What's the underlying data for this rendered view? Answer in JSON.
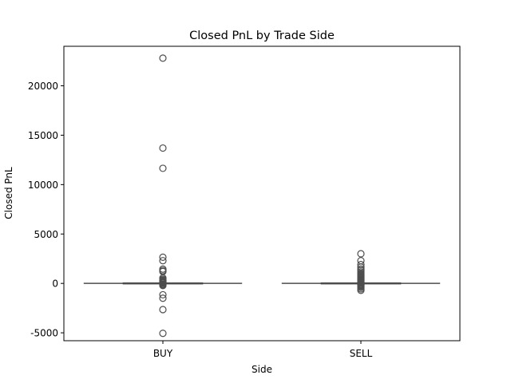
{
  "chart_data": {
    "type": "box",
    "title": "Closed PnL by Trade Side",
    "xlabel": "Side",
    "ylabel": "Closed PnL",
    "categories": [
      "BUY",
      "SELL"
    ],
    "ylim": [
      -5800,
      24000
    ],
    "yticks": [
      -5000,
      0,
      5000,
      10000,
      15000,
      20000
    ],
    "grid": false,
    "colors": {
      "box_stroke": "#4d4d4d",
      "axis": "#000000",
      "background": "#ffffff"
    },
    "boxes": [
      {
        "name": "BUY",
        "whisker_low": -8,
        "q1": -1,
        "median": 0,
        "q3": 1,
        "whisker_high": 8,
        "outliers": [
          22800,
          13700,
          11650,
          2650,
          2300,
          1450,
          1300,
          1200,
          550,
          420,
          320,
          250,
          180,
          120,
          80,
          50,
          -50,
          -90,
          -150,
          -220,
          -1150,
          -1500,
          -2650,
          -5050
        ]
      },
      {
        "name": "SELL",
        "whisker_low": -8,
        "q1": -1,
        "median": 0,
        "q3": 1,
        "whisker_high": 8,
        "outliers": [
          3000,
          2300,
          1900,
          1650,
          1450,
          1300,
          1150,
          1000,
          900,
          800,
          700,
          600,
          500,
          420,
          350,
          280,
          200,
          140,
          90,
          50,
          -50,
          -100,
          -160,
          -220,
          -300,
          -400,
          -550,
          -700
        ]
      }
    ]
  }
}
